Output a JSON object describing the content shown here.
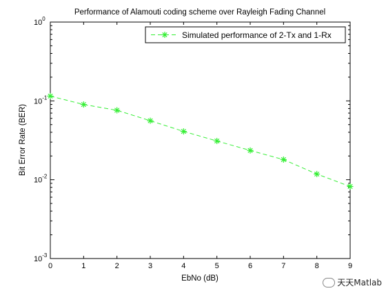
{
  "chart_data": {
    "type": "line",
    "title": "Performance of Alamouti coding scheme over Rayleigh Fading Channel",
    "xlabel": "EbNo (dB)",
    "ylabel": "Bit Error Rate (BER)",
    "xlim": [
      0,
      9
    ],
    "ylim": [
      0.001,
      1
    ],
    "yscale": "log",
    "grid": false,
    "legend_position": "top-right",
    "x_ticks": [
      "0",
      "1",
      "2",
      "3",
      "4",
      "5",
      "6",
      "7",
      "8",
      "9"
    ],
    "y_ticks": [
      {
        "base": "10",
        "exp": "0",
        "value": 1
      },
      {
        "base": "10",
        "exp": "-1",
        "value": 0.1
      },
      {
        "base": "10",
        "exp": "-2",
        "value": 0.01
      },
      {
        "base": "10",
        "exp": "-3",
        "value": 0.001
      }
    ],
    "series": [
      {
        "name": "Simulated performance of 2-Tx and 1-Rx",
        "color": "#33ee33",
        "line_style": "dashed",
        "marker": "asterisk",
        "x": [
          0,
          1,
          2,
          3,
          4,
          5,
          6,
          7,
          8,
          9
        ],
        "y": [
          0.115,
          0.09,
          0.076,
          0.056,
          0.041,
          0.031,
          0.0235,
          0.018,
          0.0118,
          0.0082
        ]
      }
    ]
  },
  "watermark": {
    "text": "天天Matlab"
  }
}
